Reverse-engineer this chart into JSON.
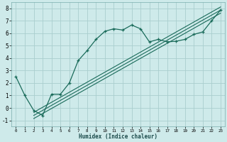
{
  "xlabel": "Humidex (Indice chaleur)",
  "bg_color": "#ceeaea",
  "grid_color": "#aacece",
  "line_color": "#1a6b5a",
  "xlim": [
    -0.5,
    23.5
  ],
  "ylim": [
    -1.5,
    8.5
  ],
  "xticks": [
    0,
    1,
    2,
    3,
    4,
    5,
    6,
    7,
    8,
    9,
    10,
    11,
    12,
    13,
    14,
    15,
    16,
    17,
    18,
    19,
    20,
    21,
    22,
    23
  ],
  "yticks": [
    -1,
    0,
    1,
    2,
    3,
    4,
    5,
    6,
    7,
    8
  ],
  "curve_x": [
    0,
    1,
    2,
    3,
    4,
    5,
    6,
    7,
    8,
    9,
    10,
    11,
    12,
    13,
    14,
    15,
    16,
    17,
    18,
    19,
    20,
    21,
    22,
    23
  ],
  "curve_y": [
    2.5,
    1.0,
    -0.2,
    -0.6,
    1.1,
    1.1,
    2.0,
    3.8,
    4.6,
    5.5,
    6.15,
    6.35,
    6.25,
    6.65,
    6.35,
    5.3,
    5.5,
    5.3,
    5.35,
    5.5,
    5.9,
    6.1,
    7.0,
    7.85
  ],
  "ref_lines": [
    {
      "x0": 2,
      "y0": -0.6,
      "x1": 23,
      "y1": 7.85
    },
    {
      "x0": 2,
      "y0": -0.85,
      "x1": 23,
      "y1": 7.6
    },
    {
      "x0": 2,
      "y0": -0.35,
      "x1": 23,
      "y1": 8.1
    }
  ]
}
